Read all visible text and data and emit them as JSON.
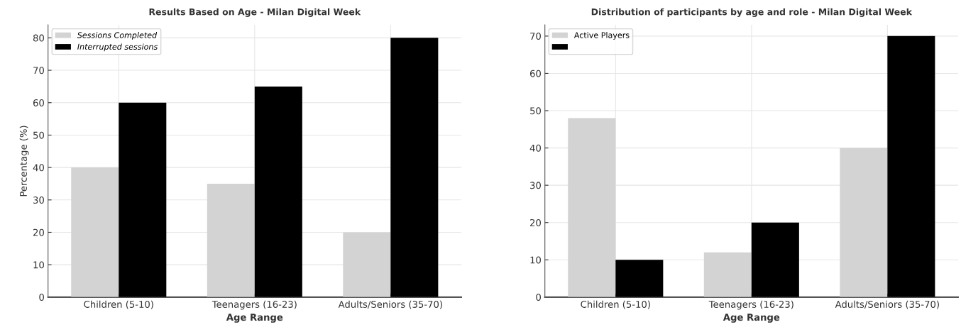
{
  "chart_data": [
    {
      "type": "bar",
      "title": "Results Based on Age - Milan Digital Week",
      "xlabel": "Age Range",
      "ylabel": "Percentage (%)",
      "categories": [
        "Children (5-10)",
        "Teenagers (16-23)",
        "Adults/Seniors (35-70)"
      ],
      "series": [
        {
          "name": "Sessions Completed",
          "color": "#d3d3d3",
          "values": [
            40,
            35,
            20
          ]
        },
        {
          "name": "Interrupted sessions",
          "color": "#000000",
          "values": [
            60,
            65,
            80
          ]
        }
      ],
      "ylim": [
        0,
        84
      ],
      "yticks": [
        0,
        10,
        20,
        30,
        40,
        50,
        60,
        70,
        80
      ],
      "grid": true,
      "legend": "top left"
    },
    {
      "type": "bar",
      "title": "Distribution of participants by age and role - Milan Digital Week",
      "xlabel": "Age Range",
      "categories": [
        "Children (5-10)",
        "Teenagers (16-23)",
        "Adults/Seniors (35-70)"
      ],
      "series": [
        {
          "name": "Active Players",
          "color": "#d3d3d3",
          "values": [
            48,
            12,
            40
          ]
        },
        {
          "color": "#000000",
          "values": [
            10,
            20,
            70
          ]
        }
      ],
      "ylim": [
        0,
        73
      ],
      "yticks": [
        0,
        10,
        20,
        30,
        40,
        50,
        60,
        70
      ],
      "grid": true,
      "legend": "top left"
    }
  ]
}
